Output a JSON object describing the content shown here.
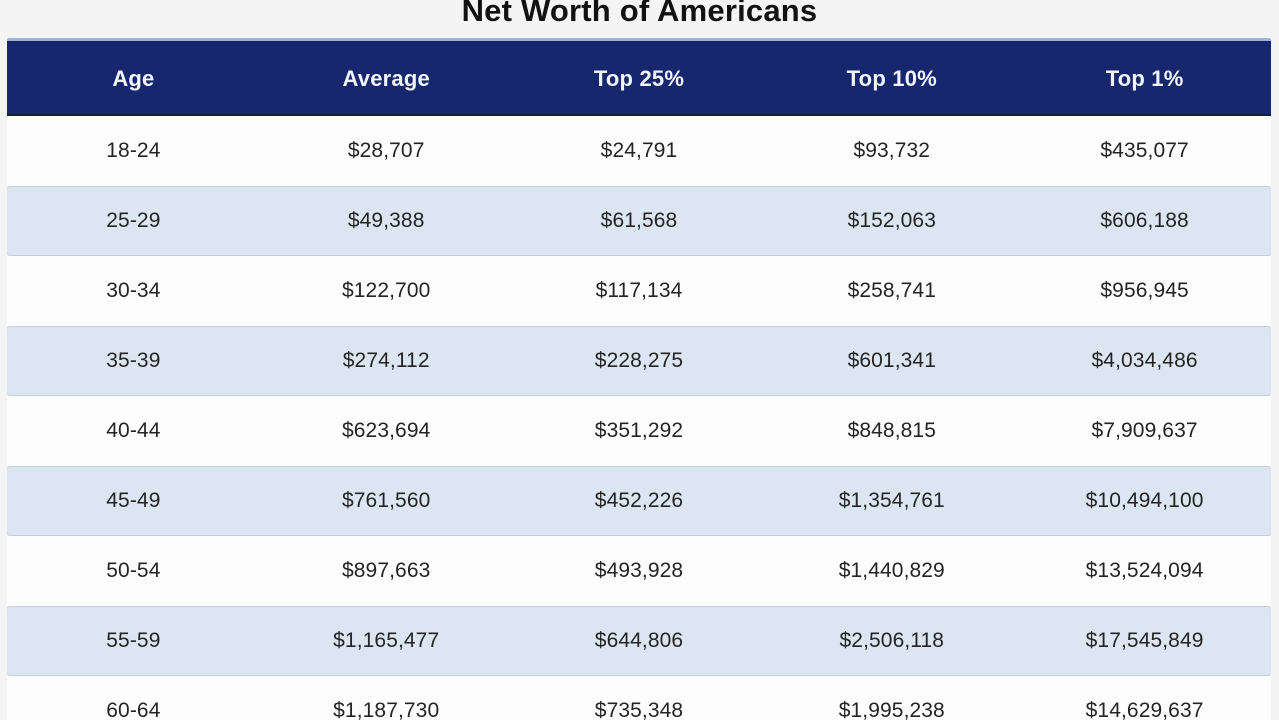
{
  "title": "Net Worth of Americans",
  "chart_data": {
    "type": "table",
    "title": "Net Worth of Americans",
    "columns": [
      "Age",
      "Average",
      "Top 25%",
      "Top 10%",
      "Top 1%"
    ],
    "rows": [
      [
        "18-24",
        "$28,707",
        "$24,791",
        "$93,732",
        "$435,077"
      ],
      [
        "25-29",
        "$49,388",
        "$61,568",
        "$152,063",
        "$606,188"
      ],
      [
        "30-34",
        "$122,700",
        "$117,134",
        "$258,741",
        "$956,945"
      ],
      [
        "35-39",
        "$274,112",
        "$228,275",
        "$601,341",
        "$4,034,486"
      ],
      [
        "40-44",
        "$623,694",
        "$351,292",
        "$848,815",
        "$7,909,637"
      ],
      [
        "45-49",
        "$761,560",
        "$452,226",
        "$1,354,761",
        "$10,494,100"
      ],
      [
        "50-54",
        "$897,663",
        "$493,928",
        "$1,440,829",
        "$13,524,094"
      ],
      [
        "55-59",
        "$1,165,477",
        "$644,806",
        "$2,506,118",
        "$17,545,849"
      ],
      [
        "60-64",
        "$1,187,730",
        "$735,348",
        "$1,995,238",
        "$14,629,637"
      ]
    ],
    "layout": {
      "striped": true,
      "stripe_pattern": "even rows light blue, odd rows white",
      "last_row_clipped_at_bottom": true,
      "title_clipped_at_top": true
    }
  },
  "colors": {
    "header_bg": "#16276e",
    "header_top_line": "#9db4d8",
    "header_text": "#f2f5fc",
    "row_bg": "#fdfdfd",
    "row_alt_bg": "#dce6f2",
    "page_bg": "#f4f4f4",
    "body_text": "#242424",
    "title_text": "#121212"
  }
}
